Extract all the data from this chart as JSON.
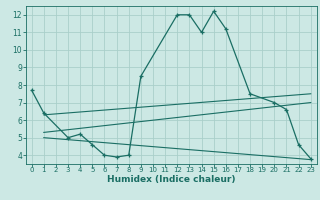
{
  "xlabel": "Humidex (Indice chaleur)",
  "bg_color": "#cce8e4",
  "grid_color": "#aacfca",
  "line_color": "#1a6e64",
  "xlim": [
    -0.5,
    23.5
  ],
  "ylim": [
    3.5,
    12.5
  ],
  "xticks": [
    0,
    1,
    2,
    3,
    4,
    5,
    6,
    7,
    8,
    9,
    10,
    11,
    12,
    13,
    14,
    15,
    16,
    17,
    18,
    19,
    20,
    21,
    22,
    23
  ],
  "yticks": [
    4,
    5,
    6,
    7,
    8,
    9,
    10,
    11,
    12
  ],
  "main_x": [
    0,
    1,
    3,
    4,
    5,
    6,
    7,
    8,
    9,
    12,
    13,
    14,
    15,
    16,
    18,
    20,
    21,
    22,
    23
  ],
  "main_y": [
    7.7,
    6.4,
    5.0,
    5.2,
    4.6,
    4.0,
    3.9,
    4.0,
    8.5,
    12.0,
    12.0,
    11.0,
    12.2,
    11.2,
    7.5,
    7.0,
    6.6,
    4.6,
    3.8
  ],
  "line2_x": [
    1,
    23
  ],
  "line2_y": [
    6.3,
    7.5
  ],
  "line3_x": [
    1,
    23
  ],
  "line3_y": [
    5.3,
    7.0
  ],
  "line4_x": [
    1,
    23
  ],
  "line4_y": [
    5.0,
    3.75
  ]
}
